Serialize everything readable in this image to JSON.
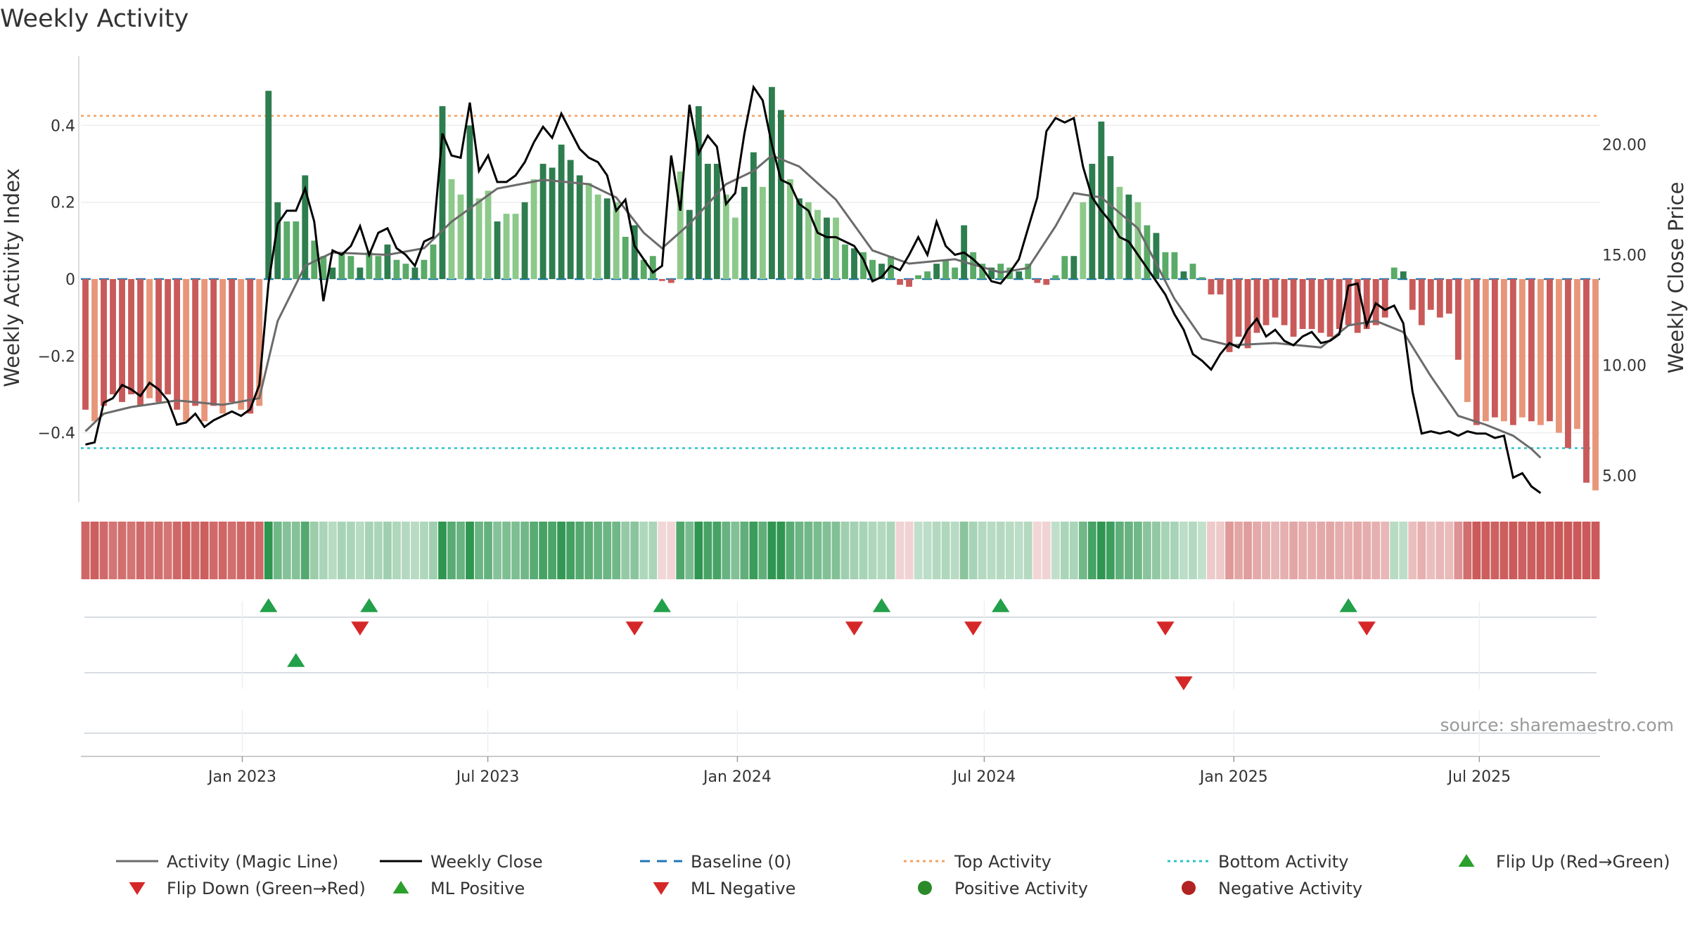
{
  "chart_data": {
    "type": "bar",
    "title": "Weekly Activity",
    "ylabel": "Weekly Activity Index",
    "y2label": "Weekly Close Price",
    "ylim": [
      -0.58,
      0.58
    ],
    "y2lim": [
      3.8,
      24.0
    ],
    "yticks": [
      {
        "v": 0.4,
        "label": "0.4"
      },
      {
        "v": 0.2,
        "label": "0.2"
      },
      {
        "v": 0,
        "label": "0"
      },
      {
        "v": -0.2,
        "label": "−0.2"
      },
      {
        "v": -0.4,
        "label": "−0.4"
      }
    ],
    "y2ticks": [
      {
        "v": 20,
        "label": "20.00"
      },
      {
        "v": 15,
        "label": "15.00"
      },
      {
        "v": 10,
        "label": "10.00"
      },
      {
        "v": 5,
        "label": "5.00"
      }
    ],
    "x_start": "2022-09-04",
    "x_end": "2025-09-28",
    "xticks": [
      {
        "date": "2023-01-01",
        "label": "Jan 2023"
      },
      {
        "date": "2023-07-01",
        "label": "Jul 2023"
      },
      {
        "date": "2024-01-01",
        "label": "Jan 2024"
      },
      {
        "date": "2024-07-01",
        "label": "Jul 2024"
      },
      {
        "date": "2025-01-01",
        "label": "Jan 2025"
      },
      {
        "date": "2025-07-01",
        "label": "Jul 2025"
      }
    ],
    "activity": [
      -0.34,
      -0.37,
      -0.33,
      -0.3,
      -0.32,
      -0.3,
      -0.33,
      -0.31,
      -0.32,
      -0.3,
      -0.34,
      -0.37,
      -0.33,
      -0.37,
      -0.33,
      -0.35,
      -0.32,
      -0.34,
      -0.35,
      -0.33,
      0.49,
      0.2,
      0.15,
      0.15,
      0.27,
      0.1,
      0.06,
      0.03,
      0.07,
      0.06,
      0.03,
      0.07,
      0.06,
      0.09,
      0.05,
      0.04,
      0.03,
      0.05,
      0.09,
      0.45,
      0.26,
      0.22,
      0.4,
      0.21,
      0.23,
      0.15,
      0.17,
      0.17,
      0.2,
      0.26,
      0.3,
      0.29,
      0.35,
      0.31,
      0.27,
      0.25,
      0.22,
      0.21,
      0.2,
      0.11,
      0.14,
      0.05,
      0.06,
      -0.005,
      -0.01,
      0.28,
      0.18,
      0.45,
      0.3,
      0.3,
      0.22,
      0.16,
      0.24,
      0.33,
      0.24,
      0.5,
      0.44,
      0.26,
      0.21,
      0.2,
      0.18,
      0.16,
      0.16,
      0.09,
      0.08,
      0.07,
      0.05,
      0.04,
      0.06,
      -0.015,
      -0.02,
      0.01,
      0.02,
      0.04,
      0.05,
      0.03,
      0.14,
      0.07,
      0.04,
      0.03,
      0.04,
      0.03,
      0.02,
      0.04,
      -0.01,
      -0.015,
      0.01,
      0.06,
      0.06,
      0.2,
      0.3,
      0.41,
      0.32,
      0.24,
      0.22,
      0.2,
      0.14,
      0.12,
      0.07,
      0.07,
      0.02,
      0.04,
      0.005,
      -0.04,
      -0.04,
      -0.19,
      -0.15,
      -0.18,
      -0.14,
      -0.12,
      -0.1,
      -0.12,
      -0.15,
      -0.13,
      -0.13,
      -0.14,
      -0.15,
      -0.13,
      -0.12,
      -0.14,
      -0.13,
      -0.12,
      -0.1,
      0.03,
      0.02,
      -0.08,
      -0.12,
      -0.08,
      -0.1,
      -0.09,
      -0.21,
      -0.32,
      -0.38,
      -0.37,
      -0.36,
      -0.37,
      -0.38,
      -0.36,
      -0.37,
      -0.38,
      -0.37,
      -0.4,
      -0.44,
      -0.39,
      -0.53,
      -0.55
    ],
    "close_series": [
      [
        0,
        6.4
      ],
      [
        1,
        6.5
      ],
      [
        2,
        8.3
      ],
      [
        3,
        8.5
      ],
      [
        4,
        9.1
      ],
      [
        5,
        8.9
      ],
      [
        6,
        8.6
      ],
      [
        7,
        9.2
      ],
      [
        8,
        8.9
      ],
      [
        9,
        8.4
      ],
      [
        10,
        7.3
      ],
      [
        11,
        7.4
      ],
      [
        12,
        7.8
      ],
      [
        13,
        7.2
      ],
      [
        14,
        7.5
      ],
      [
        15,
        7.7
      ],
      [
        16,
        7.9
      ],
      [
        17,
        7.7
      ],
      [
        18,
        8.0
      ],
      [
        19,
        9.1
      ],
      [
        20,
        13.7
      ],
      [
        21,
        16.4
      ],
      [
        22,
        17.0
      ],
      [
        23,
        17.0
      ],
      [
        24,
        18.0
      ],
      [
        25,
        16.5
      ],
      [
        26,
        12.9
      ],
      [
        27,
        15.2
      ],
      [
        28,
        15.0
      ],
      [
        29,
        15.4
      ],
      [
        30,
        16.3
      ],
      [
        31,
        15.0
      ],
      [
        32,
        16.0
      ],
      [
        33,
        16.2
      ],
      [
        34,
        15.3
      ],
      [
        35,
        15.0
      ],
      [
        36,
        14.5
      ],
      [
        37,
        15.6
      ],
      [
        38,
        15.8
      ],
      [
        39,
        20.5
      ],
      [
        40,
        19.5
      ],
      [
        41,
        19.4
      ],
      [
        42,
        21.9
      ],
      [
        43,
        18.8
      ],
      [
        44,
        19.5
      ],
      [
        45,
        18.3
      ],
      [
        46,
        18.3
      ],
      [
        47,
        18.6
      ],
      [
        48,
        19.2
      ],
      [
        49,
        20.1
      ],
      [
        50,
        20.8
      ],
      [
        51,
        20.3
      ],
      [
        52,
        21.4
      ],
      [
        53,
        20.6
      ],
      [
        54,
        19.8
      ],
      [
        55,
        19.4
      ],
      [
        56,
        19.2
      ],
      [
        57,
        18.6
      ],
      [
        58,
        17.0
      ],
      [
        59,
        17.5
      ],
      [
        60,
        15.4
      ],
      [
        61,
        14.8
      ],
      [
        62,
        14.2
      ],
      [
        63,
        14.5
      ],
      [
        64,
        19.5
      ],
      [
        65,
        17.0
      ],
      [
        66,
        21.8
      ],
      [
        67,
        19.6
      ],
      [
        68,
        20.4
      ],
      [
        69,
        19.9
      ],
      [
        70,
        17.3
      ],
      [
        71,
        17.8
      ],
      [
        72,
        20.5
      ],
      [
        73,
        22.6
      ],
      [
        74,
        22.0
      ],
      [
        75,
        20.0
      ],
      [
        76,
        18.4
      ],
      [
        77,
        18.2
      ],
      [
        78,
        17.3
      ],
      [
        79,
        17.0
      ],
      [
        80,
        16.0
      ],
      [
        81,
        15.8
      ],
      [
        82,
        15.8
      ],
      [
        83,
        15.6
      ],
      [
        84,
        15.4
      ],
      [
        85,
        14.8
      ],
      [
        86,
        13.8
      ],
      [
        87,
        14.0
      ],
      [
        88,
        14.5
      ],
      [
        89,
        14.3
      ],
      [
        90,
        15.0
      ],
      [
        91,
        15.8
      ],
      [
        92,
        15.0
      ],
      [
        93,
        16.5
      ],
      [
        94,
        15.4
      ],
      [
        95,
        15.0
      ],
      [
        96,
        15.1
      ],
      [
        97,
        14.8
      ],
      [
        98,
        14.4
      ],
      [
        99,
        13.8
      ],
      [
        100,
        13.7
      ],
      [
        101,
        14.2
      ],
      [
        102,
        14.8
      ],
      [
        103,
        16.2
      ],
      [
        104,
        17.6
      ],
      [
        105,
        20.6
      ],
      [
        106,
        21.2
      ],
      [
        107,
        21.0
      ],
      [
        108,
        21.2
      ],
      [
        109,
        19.0
      ],
      [
        110,
        17.6
      ],
      [
        111,
        17.0
      ],
      [
        112,
        16.5
      ],
      [
        113,
        15.8
      ],
      [
        114,
        15.6
      ],
      [
        115,
        15.0
      ],
      [
        116,
        14.4
      ],
      [
        117,
        13.8
      ],
      [
        118,
        13.2
      ],
      [
        119,
        12.3
      ],
      [
        120,
        11.6
      ],
      [
        121,
        10.5
      ],
      [
        122,
        10.2
      ],
      [
        123,
        9.8
      ],
      [
        124,
        10.5
      ],
      [
        125,
        11.0
      ],
      [
        126,
        10.8
      ],
      [
        127,
        11.6
      ],
      [
        128,
        12.1
      ],
      [
        129,
        11.3
      ],
      [
        130,
        11.6
      ],
      [
        131,
        11.1
      ],
      [
        132,
        10.9
      ],
      [
        133,
        11.3
      ],
      [
        134,
        11.5
      ],
      [
        135,
        11.0
      ],
      [
        136,
        11.1
      ],
      [
        137,
        11.4
      ],
      [
        138,
        13.6
      ],
      [
        139,
        13.7
      ],
      [
        140,
        11.8
      ],
      [
        141,
        12.8
      ],
      [
        142,
        12.5
      ],
      [
        143,
        12.7
      ],
      [
        144,
        11.9
      ],
      [
        145,
        8.8
      ],
      [
        146,
        6.9
      ],
      [
        147,
        7.0
      ],
      [
        148,
        6.9
      ],
      [
        149,
        7.0
      ],
      [
        150,
        6.8
      ],
      [
        151,
        7.0
      ],
      [
        152,
        6.9
      ],
      [
        153,
        6.9
      ],
      [
        154,
        6.7
      ],
      [
        155,
        6.8
      ],
      [
        156,
        4.9
      ],
      [
        157,
        5.1
      ],
      [
        158,
        4.5
      ],
      [
        159,
        4.2
      ]
    ],
    "magic_series": [
      [
        0,
        7.0
      ],
      [
        2,
        7.8
      ],
      [
        5,
        8.1
      ],
      [
        10,
        8.4
      ],
      [
        15,
        8.2
      ],
      [
        19,
        8.5
      ],
      [
        21,
        12.0
      ],
      [
        24,
        14.5
      ],
      [
        27,
        15.1
      ],
      [
        33,
        15.0
      ],
      [
        37,
        15.3
      ],
      [
        40,
        16.5
      ],
      [
        45,
        18.0
      ],
      [
        50,
        18.4
      ],
      [
        55,
        18.2
      ],
      [
        58,
        17.6
      ],
      [
        61,
        16.0
      ],
      [
        63,
        15.3
      ],
      [
        66,
        16.4
      ],
      [
        70,
        18.2
      ],
      [
        73,
        18.8
      ],
      [
        75,
        19.5
      ],
      [
        78,
        19.0
      ],
      [
        82,
        17.5
      ],
      [
        86,
        15.2
      ],
      [
        90,
        14.6
      ],
      [
        95,
        14.8
      ],
      [
        100,
        14.2
      ],
      [
        103,
        14.4
      ],
      [
        106,
        16.3
      ],
      [
        108,
        17.8
      ],
      [
        111,
        17.6
      ],
      [
        115,
        16.2
      ],
      [
        119,
        13.0
      ],
      [
        122,
        11.2
      ],
      [
        125,
        10.9
      ],
      [
        130,
        11.0
      ],
      [
        135,
        10.8
      ],
      [
        138,
        11.8
      ],
      [
        141,
        12.0
      ],
      [
        144,
        11.5
      ],
      [
        147,
        9.5
      ],
      [
        150,
        7.7
      ],
      [
        153,
        7.3
      ],
      [
        156,
        6.8
      ],
      [
        158,
        6.2
      ],
      [
        159,
        5.8
      ]
    ],
    "baseline": 0,
    "top_activity": 0.425,
    "bottom_activity": -0.44,
    "flip_up_weeks": [
      20,
      31,
      63,
      87,
      100,
      138
    ],
    "flip_down_weeks": [
      30,
      60,
      84,
      97,
      118,
      140
    ],
    "ml_positive_weeks": [
      23
    ],
    "ml_negative_weeks": [
      120
    ],
    "source": "source: sharemaestro.com",
    "legend": [
      {
        "label": "Activity (Magic Line)",
        "type": "line-solid",
        "color": "#6b6b6b"
      },
      {
        "label": "Weekly Close",
        "type": "line-solid",
        "color": "#000000"
      },
      {
        "label": "Baseline (0)",
        "type": "line-dashed",
        "color": "#1f77b4"
      },
      {
        "label": "Top Activity",
        "type": "line-dotted",
        "color": "#f4a261"
      },
      {
        "label": "Bottom Activity",
        "type": "line-dotted",
        "color": "#2ac3c9"
      },
      {
        "label": "Flip Up (Red→Green)",
        "type": "tri-up",
        "color": "#2ca02c"
      },
      {
        "label": "Flip Down (Green→Red)",
        "type": "tri-down",
        "color": "#d62728"
      },
      {
        "label": "ML Positive",
        "type": "tri-up",
        "color": "#2ca02c"
      },
      {
        "label": "ML Negative",
        "type": "tri-down",
        "color": "#d62728"
      },
      {
        "label": "Positive Activity",
        "type": "dot",
        "color": "#2a8a2a"
      },
      {
        "label": "Negative Activity",
        "type": "dot",
        "color": "#b22222"
      }
    ],
    "colors": {
      "pos_dark": "#2e7d4f",
      "pos_mid": "#5aaa68",
      "pos_light": "#8cc98a",
      "neg_dark": "#c95a5a",
      "neg_light": "#e8967a",
      "close": "#000000",
      "magic": "#6b6b6b",
      "baseline": "#1f77b4",
      "top": "#f4a261",
      "bottom": "#2ac3c9",
      "flip_up": "#23a04a",
      "flip_down": "#d62728"
    }
  }
}
